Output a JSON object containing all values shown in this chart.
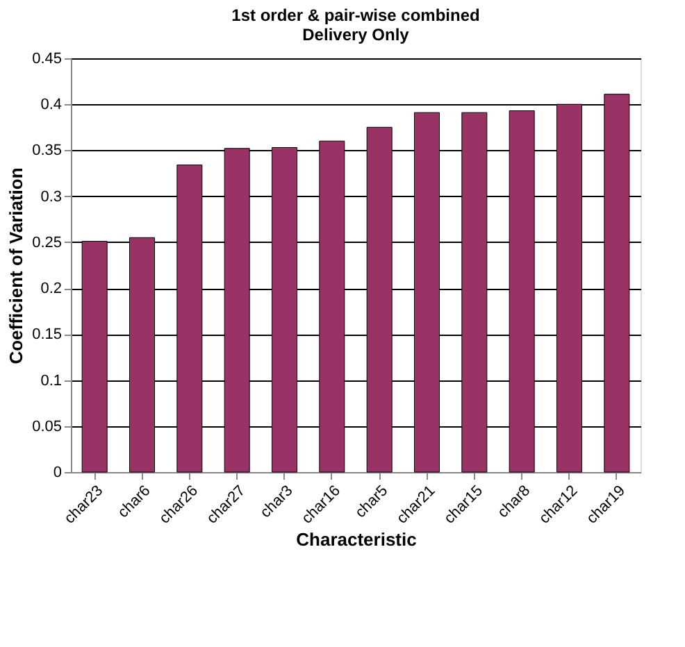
{
  "chart_data": {
    "type": "bar",
    "title": [
      "1st order & pair-wise combined",
      "Delivery Only"
    ],
    "xlabel": "Characteristic",
    "ylabel": "Coefficient of Variation",
    "categories": [
      "char23",
      "char6",
      "char26",
      "char27",
      "char3",
      "char16",
      "char5",
      "char21",
      "char15",
      "char8",
      "char12",
      "char19"
    ],
    "series": [
      {
        "color": "#993366",
        "values": [
          0.251,
          0.255,
          0.334,
          0.352,
          0.353,
          0.36,
          0.375,
          0.391,
          0.391,
          0.393,
          0.4,
          0.411
        ]
      }
    ],
    "ylim": [
      0,
      0.45
    ],
    "yticks": [
      0,
      0.05,
      0.1,
      0.15,
      0.2,
      0.25,
      0.3,
      0.35,
      0.4,
      0.45
    ],
    "grid": "y",
    "legend": false
  }
}
